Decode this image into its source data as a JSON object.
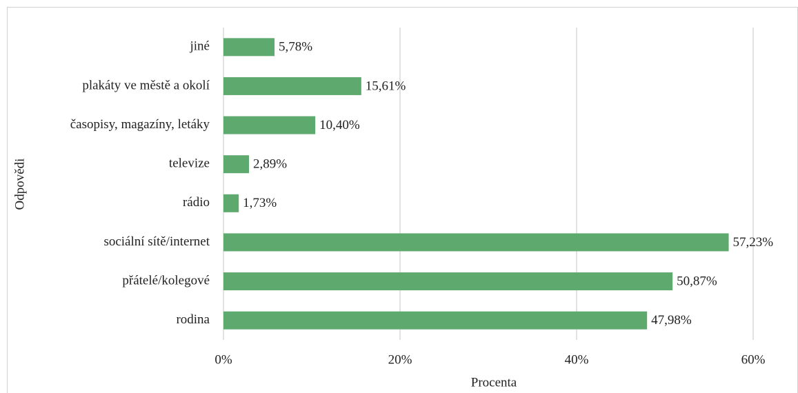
{
  "chart_data": {
    "type": "hbar",
    "categories": [
      "jiné",
      "plakáty ve městě a okolí",
      "časopisy, magazíny, letáky",
      "televize",
      "rádio",
      "sociální sítě/internet",
      "přátelé/kolegové",
      "rodina"
    ],
    "values": [
      5.78,
      15.61,
      10.4,
      2.89,
      1.73,
      57.23,
      50.87,
      47.98
    ],
    "value_labels": [
      "5,78%",
      "15,61%",
      "10,40%",
      "2,89%",
      "1,73%",
      "57,23%",
      "50,87%",
      "47,98%"
    ],
    "color": "#5ea96e",
    "xlabel": "Procenta",
    "ylabel": "Odpovědi",
    "xlim": [
      0,
      60
    ],
    "xticks": [
      {
        "value": 0,
        "label": "0%"
      },
      {
        "value": 20,
        "label": "20%"
      },
      {
        "value": 40,
        "label": "40%"
      },
      {
        "value": 60,
        "label": "60%"
      }
    ],
    "grid": true
  }
}
